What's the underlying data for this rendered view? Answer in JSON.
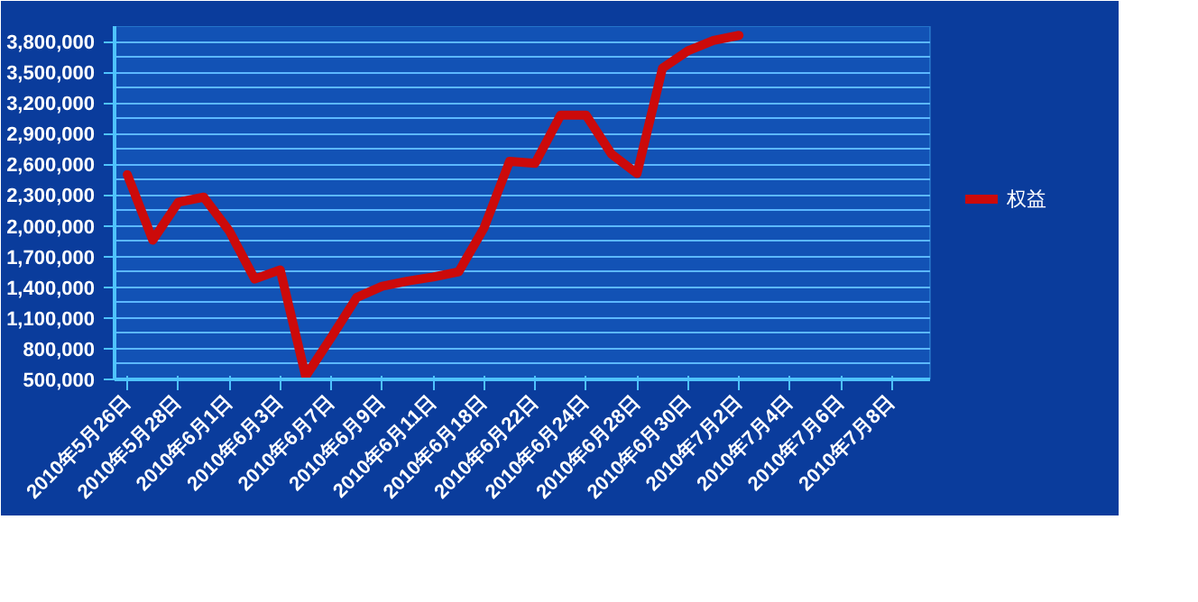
{
  "chart_data": {
    "type": "line",
    "categories": [
      "2010年5月26日",
      null,
      "2010年5月28日",
      null,
      "2010年6月1日",
      null,
      "2010年6月3日",
      null,
      "2010年6月7日",
      null,
      "2010年6月9日",
      null,
      "2010年6月11日",
      null,
      "2010年6月18日",
      null,
      "2010年6月22日",
      null,
      "2010年6月24日",
      null,
      "2010年6月28日",
      null,
      "2010年6月30日",
      null,
      "2010年7月2日",
      null,
      "2010年7月4日",
      null,
      "2010年7月6日",
      null,
      "2010年7月8日",
      null
    ],
    "series": [
      {
        "name": "权益",
        "color": "#cc0a0a",
        "values": [
          2500000,
          1860000,
          2230000,
          2280000,
          1950000,
          1480000,
          1570000,
          530000,
          910000,
          1300000,
          1410000,
          1460000,
          1500000,
          1550000,
          1980000,
          2630000,
          2610000,
          3080000,
          3080000,
          2700000,
          2510000,
          3540000,
          3710000,
          3810000,
          3860000,
          null,
          null,
          null,
          null,
          null,
          null,
          null
        ]
      }
    ],
    "ylim": [
      500000,
      3950000
    ],
    "yticks": [
      {
        "value": 500000,
        "label": "500,000"
      },
      {
        "value": 800000,
        "label": "800,000"
      },
      {
        "value": 1100000,
        "label": "1,100,000"
      },
      {
        "value": 1400000,
        "label": "1,400,000"
      },
      {
        "value": 1700000,
        "label": "1,700,000"
      },
      {
        "value": 2000000,
        "label": "2,000,000"
      },
      {
        "value": 2300000,
        "label": "2,300,000"
      },
      {
        "value": 2600000,
        "label": "2,600,000"
      },
      {
        "value": 2900000,
        "label": "2,900,000"
      },
      {
        "value": 3200000,
        "label": "3,200,000"
      },
      {
        "value": 3500000,
        "label": "3,500,000"
      },
      {
        "value": 3800000,
        "label": "3,800,000"
      }
    ],
    "grid": "y",
    "legend": "right",
    "marker": "none",
    "line_style": "solid"
  }
}
